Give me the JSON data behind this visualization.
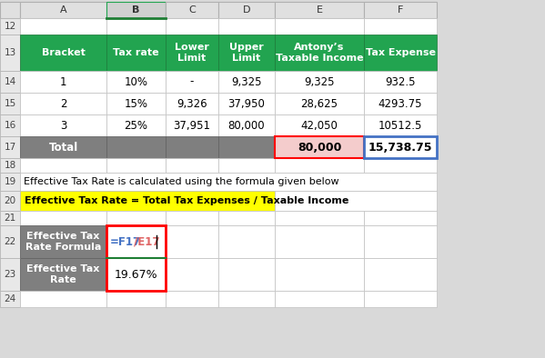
{
  "header_row": [
    "Bracket",
    "Tax rate",
    "Lower\nLimit",
    "Upper\nLimit",
    "Antony’s\nTaxable Income",
    "Tax Expense"
  ],
  "data_rows": [
    [
      "1",
      "10%",
      "-",
      "9,325",
      "9,325",
      "932.5"
    ],
    [
      "2",
      "15%",
      "9,326",
      "37,950",
      "28,625",
      "4293.75"
    ],
    [
      "3",
      "25%",
      "37,951",
      "80,000",
      "42,050",
      "10512.5"
    ]
  ],
  "total_row": [
    "Total",
    "",
    "",
    "",
    "80,000",
    "15,738.75"
  ],
  "formula_label": "Effective Tax\nRate Formula",
  "formula_value_1": "=F17",
  "formula_value_2": "/E17",
  "rate_label": "Effective Tax\nRate",
  "rate_value": "19.67%",
  "note_text": "Effective Tax Rate is calculated using the formula given below",
  "formula_text": "Effective Tax Rate = Total Tax Expenses / Taxable Income",
  "header_bg": "#22a450",
  "header_fg": "#ffffff",
  "total_bg": "#7f7f7f",
  "total_fg": "#ffffff",
  "label_bg": "#7f7f7f",
  "label_fg": "#ffffff",
  "data_bg": "#ffffff",
  "data_fg": "#000000",
  "col_header_bg": "#e0e0e0",
  "col_header_fg": "#333333",
  "row_header_bg": "#e8e8e8",
  "row_header_fg": "#444444",
  "grid_color": "#c8c8c8",
  "yellow_bg": "#ffff00",
  "pink_bg": "#f4cccc",
  "red_border": "#ff0000",
  "blue_border": "#4472c4",
  "formula_blue": "#4472c4",
  "formula_red": "#e06666",
  "green_line": "#1e7e34",
  "bg_color": "#d9d9d9"
}
